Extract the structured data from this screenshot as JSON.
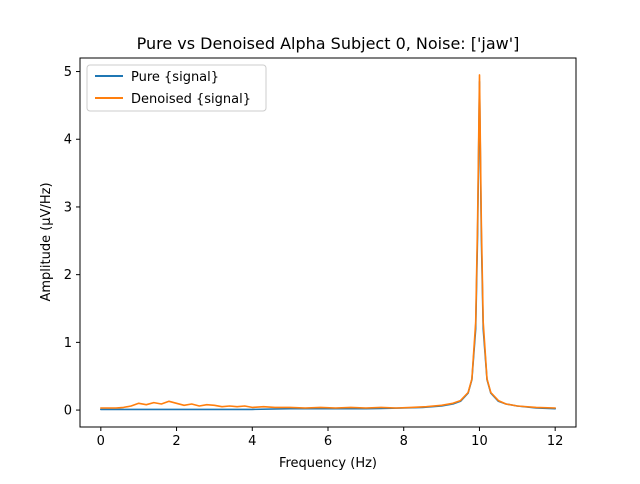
{
  "chart_data": {
    "type": "line",
    "title": "Pure vs Denoised Alpha Subject 0, Noise: ['jaw']",
    "xlabel": "Frequency (Hz)",
    "ylabel": "Amplitude (μV/Hz)",
    "xlim": [
      -0.55,
      12.55
    ],
    "ylim": [
      -0.25,
      5.2
    ],
    "xticks": [
      0,
      2,
      4,
      6,
      8,
      10,
      12
    ],
    "yticks": [
      0,
      1,
      2,
      3,
      4,
      5
    ],
    "xtick_labels": [
      "0",
      "2",
      "4",
      "6",
      "8",
      "10",
      "12"
    ],
    "ytick_labels": [
      "0",
      "1",
      "2",
      "3",
      "4",
      "5"
    ],
    "grid": false,
    "legend_position": "top-left",
    "series": [
      {
        "name": "Pure {signal}",
        "color": "#1f77b4",
        "x": [
          0,
          1,
          2,
          3,
          4,
          5,
          6,
          7,
          8,
          8.5,
          9,
          9.3,
          9.5,
          9.7,
          9.8,
          9.9,
          9.95,
          10,
          10.05,
          10.1,
          10.2,
          10.3,
          10.5,
          10.7,
          11,
          11.5,
          12
        ],
        "y": [
          0.01,
          0.01,
          0.01,
          0.01,
          0.01,
          0.02,
          0.02,
          0.02,
          0.03,
          0.04,
          0.06,
          0.09,
          0.13,
          0.25,
          0.45,
          1.2,
          2.6,
          4.85,
          2.6,
          1.2,
          0.45,
          0.25,
          0.13,
          0.09,
          0.06,
          0.03,
          0.02
        ]
      },
      {
        "name": "Denoised {signal}",
        "color": "#ff7f0e",
        "x": [
          0,
          0.2,
          0.4,
          0.6,
          0.8,
          1.0,
          1.2,
          1.4,
          1.6,
          1.8,
          2.0,
          2.2,
          2.4,
          2.6,
          2.8,
          3.0,
          3.2,
          3.4,
          3.6,
          3.8,
          4.0,
          4.3,
          4.6,
          5.0,
          5.4,
          5.8,
          6.2,
          6.6,
          7.0,
          7.4,
          7.8,
          8.2,
          8.6,
          9.0,
          9.3,
          9.5,
          9.7,
          9.8,
          9.9,
          9.95,
          10,
          10.05,
          10.1,
          10.2,
          10.3,
          10.5,
          10.7,
          11,
          11.5,
          12
        ],
        "y": [
          0.03,
          0.03,
          0.03,
          0.04,
          0.06,
          0.1,
          0.08,
          0.11,
          0.09,
          0.13,
          0.1,
          0.07,
          0.09,
          0.06,
          0.08,
          0.07,
          0.05,
          0.06,
          0.05,
          0.06,
          0.04,
          0.05,
          0.04,
          0.04,
          0.03,
          0.04,
          0.03,
          0.04,
          0.03,
          0.04,
          0.03,
          0.04,
          0.05,
          0.07,
          0.1,
          0.14,
          0.26,
          0.46,
          1.3,
          2.8,
          4.95,
          2.8,
          1.3,
          0.46,
          0.26,
          0.14,
          0.09,
          0.06,
          0.04,
          0.03
        ]
      }
    ]
  }
}
